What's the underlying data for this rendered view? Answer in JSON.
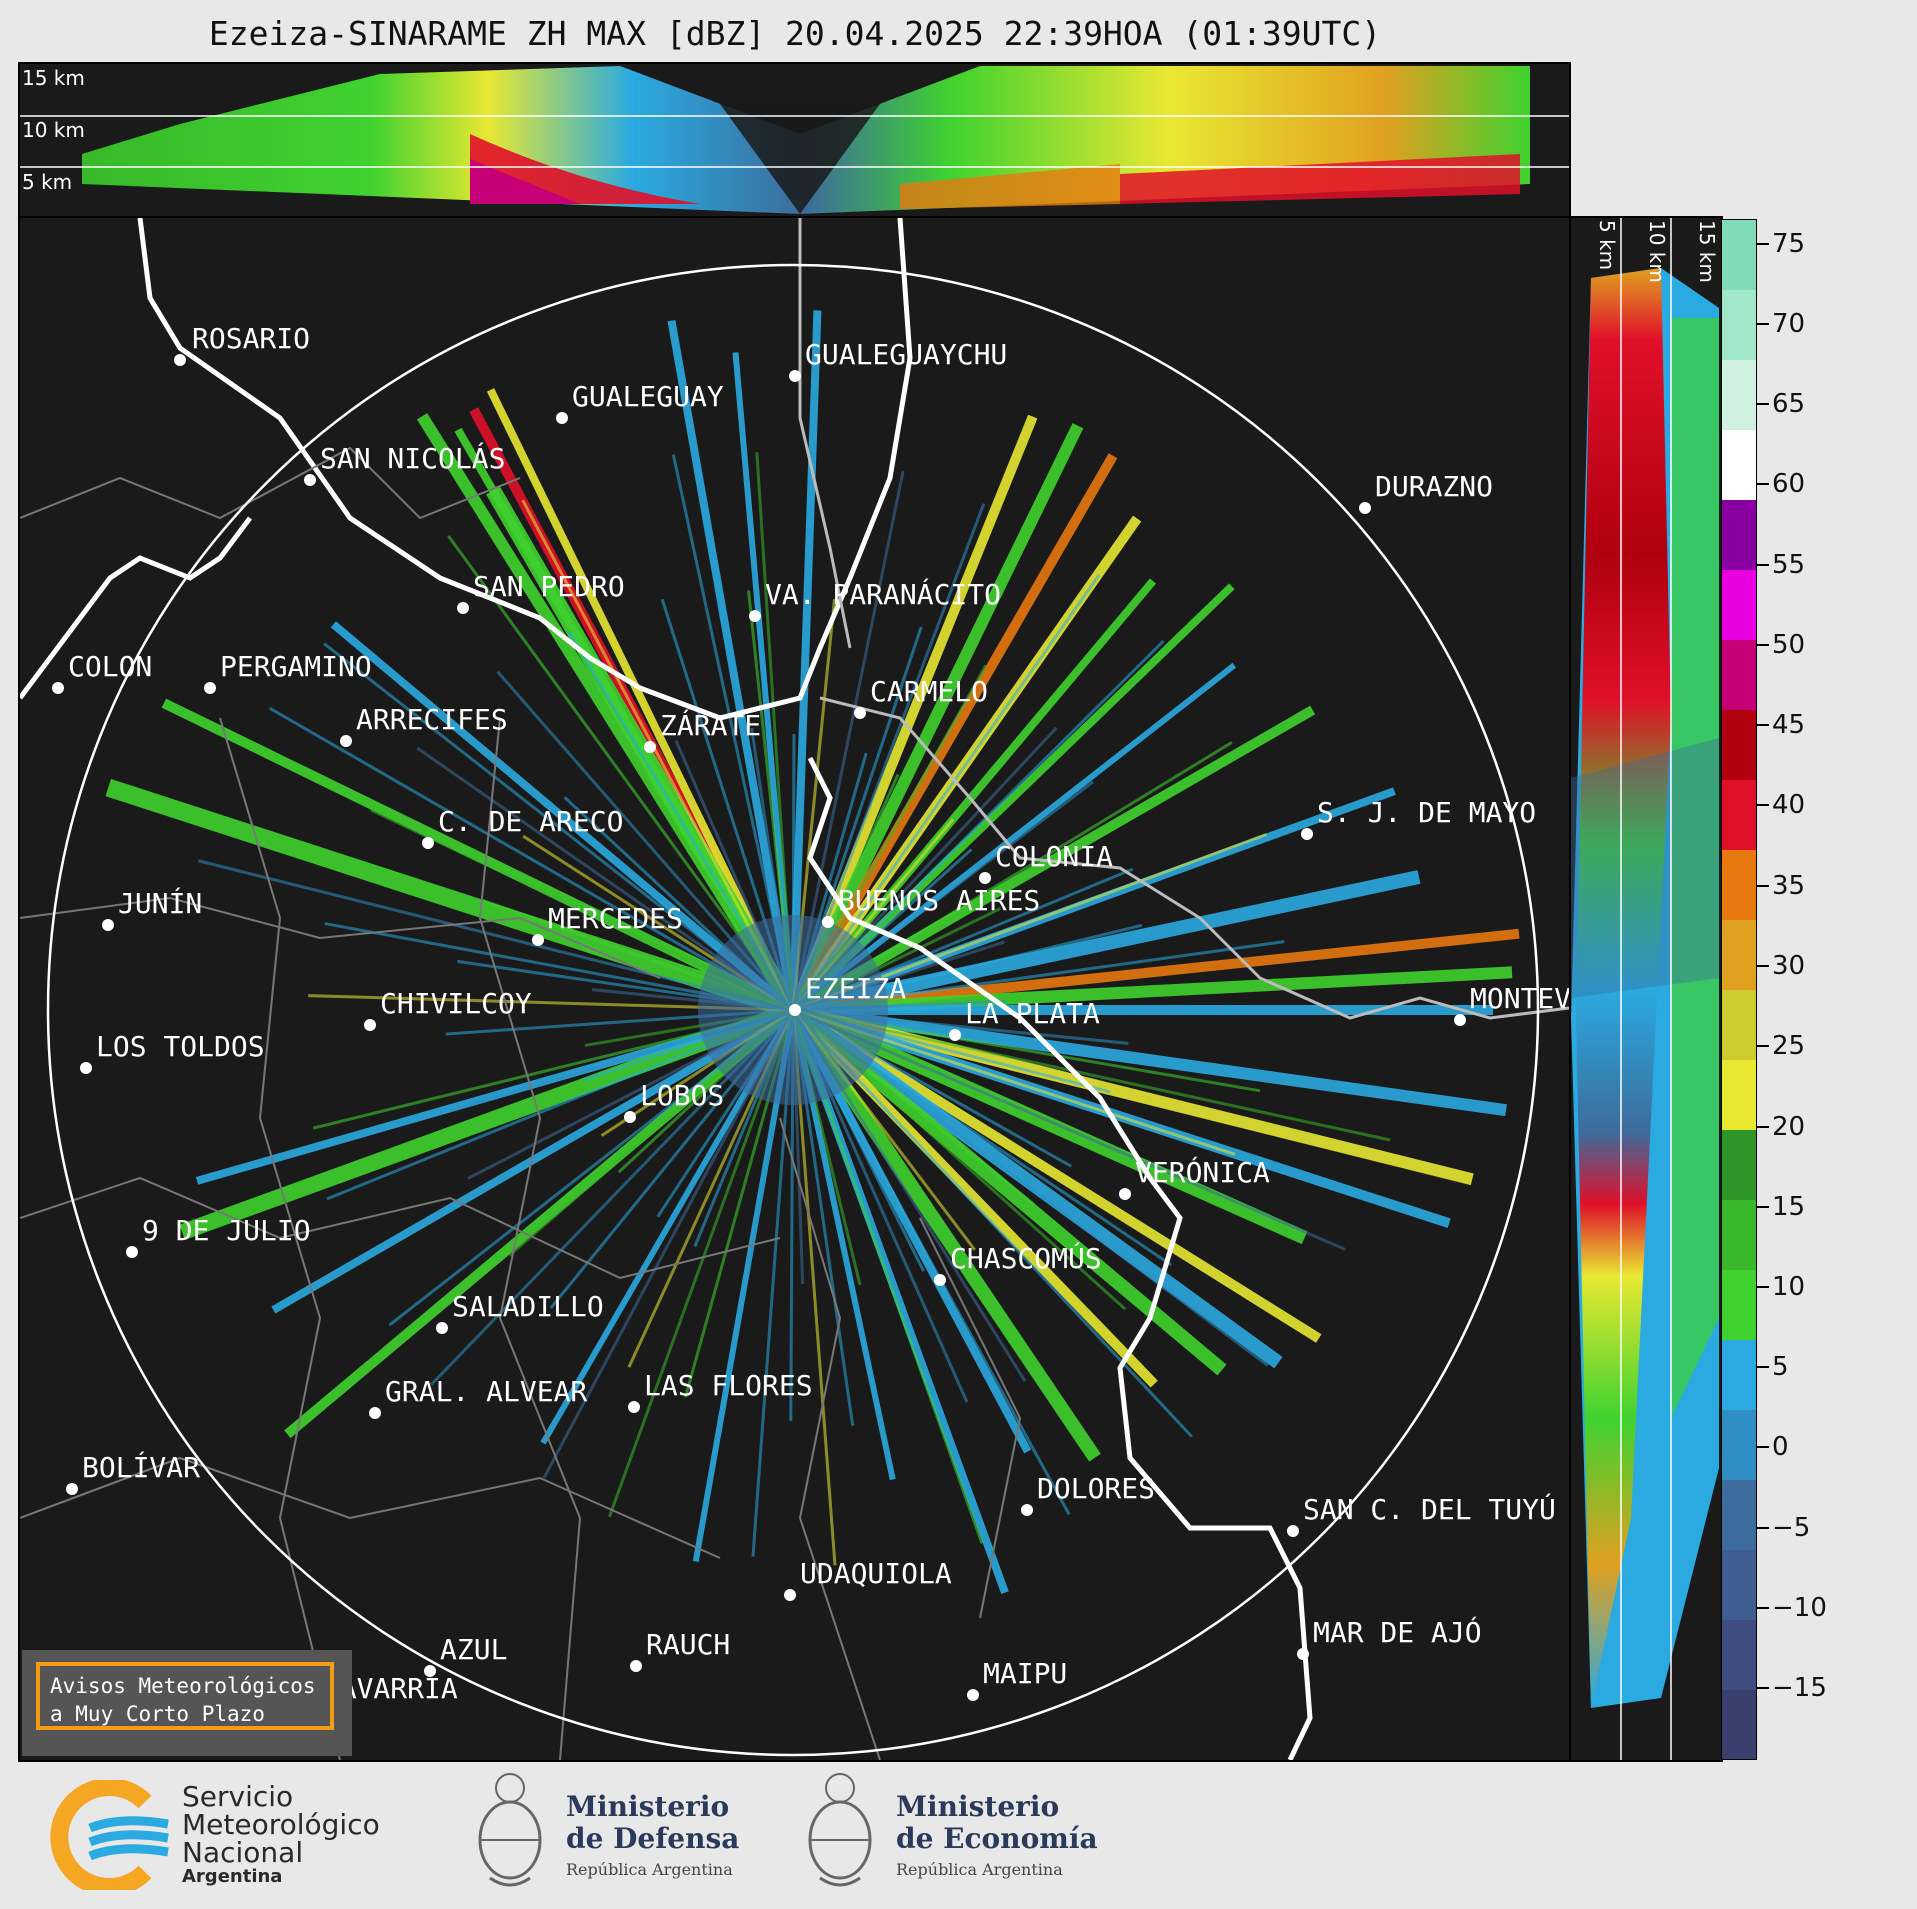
{
  "title": "Ezeiza-SINARAME ZH MAX [dBZ] 20.04.2025 22:39HOA (01:39UTC)",
  "top_height_labels": [
    "15 km",
    "10 km",
    "5 km"
  ],
  "side_height_labels": [
    "5 km",
    "10 km",
    "15 km"
  ],
  "colorbar": {
    "ticks": [
      "75",
      "70",
      "65",
      "60",
      "55",
      "50",
      "45",
      "40",
      "35",
      "30",
      "25",
      "20",
      "15",
      "10",
      "5",
      "0",
      "−5",
      "−10",
      "−15"
    ],
    "colors": [
      "#3b3f6e",
      "#3f4d80",
      "#3f5d90",
      "#3d6c9c",
      "#2f8fc4",
      "#2aaae0",
      "#3fd22f",
      "#38b82a",
      "#2e9628",
      "#e8e832",
      "#cccc30",
      "#e0a020",
      "#e87810",
      "#e0102a",
      "#b00010",
      "#c80078",
      "#e800e0",
      "#8800a0",
      "#ffffff",
      "#d0f0e0",
      "#a0e8c8",
      "#80dcb8"
    ]
  },
  "cities": [
    {
      "name": "ROSARIO",
      "dot_color": "#ffffff"
    },
    {
      "name": "GUALEGUAYCHU"
    },
    {
      "name": "GUALEGUAY"
    },
    {
      "name": "SAN NICOLÁS"
    },
    {
      "name": "DURAZNO"
    },
    {
      "name": "SAN PEDRO"
    },
    {
      "name": "VA. PARANÁCITO"
    },
    {
      "name": "COLON"
    },
    {
      "name": "PERGAMINO"
    },
    {
      "name": "CARMELO"
    },
    {
      "name": "ARRECIFES"
    },
    {
      "name": "ZÁRATE"
    },
    {
      "name": "S. J. DE MAYO"
    },
    {
      "name": "C. DE ARECO"
    },
    {
      "name": "COLONIA"
    },
    {
      "name": "BUENOS AIRES"
    },
    {
      "name": "JUNÍN"
    },
    {
      "name": "MERCEDES"
    },
    {
      "name": "EZEIZA"
    },
    {
      "name": "MONTEV"
    },
    {
      "name": "CHIVILCOY"
    },
    {
      "name": "LA PLATA"
    },
    {
      "name": "LOS TOLDOS"
    },
    {
      "name": "LOBOS"
    },
    {
      "name": "VERÓNICA"
    },
    {
      "name": "9 DE JULIO"
    },
    {
      "name": "CHASCOMÚS"
    },
    {
      "name": "SALADILLO"
    },
    {
      "name": "GRAL. ALVEAR"
    },
    {
      "name": "LAS FLORES"
    },
    {
      "name": "BOLÍVAR"
    },
    {
      "name": "DOLORES"
    },
    {
      "name": "SAN C. DEL TUYÚ"
    },
    {
      "name": "UDAQUIOLA"
    },
    {
      "name": "MAR DE AJÓ"
    },
    {
      "name": "AZUL"
    },
    {
      "name": "RAUCH"
    },
    {
      "name": "OLAVARRÍA"
    },
    {
      "name": "MAIPU"
    }
  ],
  "aviso": {
    "line1": "Avisos Meteorológicos",
    "line2": "a Muy Corto Plazo"
  },
  "logos": {
    "smn": {
      "line1": "Servicio",
      "line2": "Meteorológico",
      "line3": "Nacional",
      "line4": "Argentina"
    },
    "defensa": {
      "line1": "Ministerio",
      "line2": "de Defensa",
      "line3": "República Argentina"
    },
    "economia": {
      "line1": "Ministerio",
      "line2": "de Economía",
      "line3": "República Argentina"
    }
  }
}
